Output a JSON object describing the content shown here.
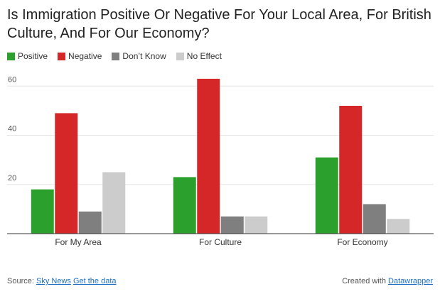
{
  "chart_data": {
    "type": "bar",
    "title": "Is Immigration Positive Or Negative For Your Local Area, For British Culture, And For Our Economy?",
    "categories": [
      "For My Area",
      "For Culture",
      "For Economy"
    ],
    "series": [
      {
        "name": "Positive",
        "color": "#2ca02c",
        "values": [
          18,
          23,
          31
        ]
      },
      {
        "name": "Negative",
        "color": "#d62728",
        "values": [
          49,
          63,
          52
        ]
      },
      {
        "name": "Don’t Know",
        "color": "#7f7f7f",
        "values": [
          9,
          7,
          12
        ]
      },
      {
        "name": "No Effect",
        "color": "#cccccc",
        "values": [
          25,
          7,
          6
        ]
      }
    ],
    "yticks": [
      20,
      40,
      60
    ],
    "ylim": [
      0,
      65
    ],
    "grid": true,
    "legend_position": "top-left"
  },
  "footer": {
    "source_label": "Source:",
    "source_link": "Sky News",
    "data_link": "Get the data",
    "created_label": "Created with",
    "created_link": "Datawrapper"
  }
}
